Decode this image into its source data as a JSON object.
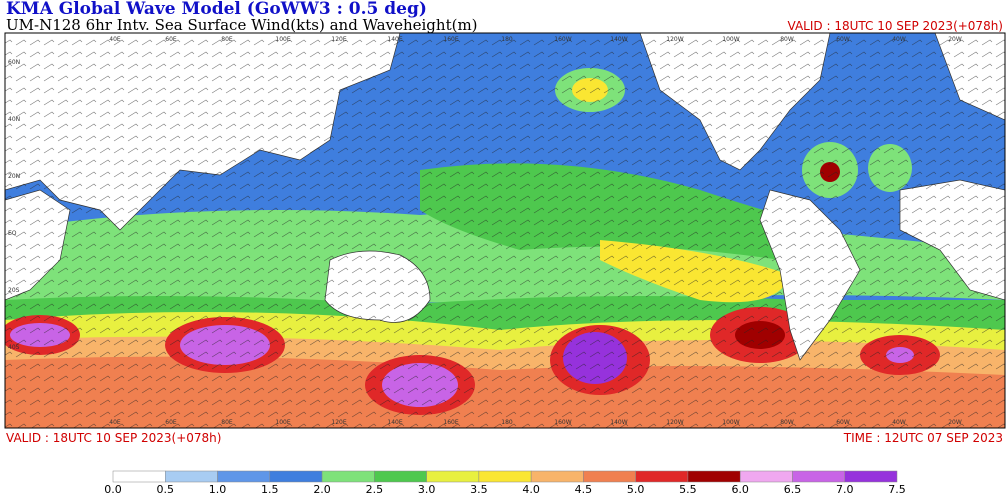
{
  "header": {
    "title": "KMA  Global Wave Model (GoWW3 : 0.5 deg)",
    "subtitle": "UM-N128  6hr Intv. Sea Surface Wind(kts) and Waveheight(m)",
    "valid": "VALID : 18UTC 10 SEP 2023(+078h)"
  },
  "footer": {
    "valid": "VALID : 18UTC 10 SEP 2023(+078h)",
    "time": "TIME : 12UTC 07 SEP 2023"
  },
  "map": {
    "longitude_labels": [
      "40E",
      "60E",
      "80E",
      "100E",
      "120E",
      "140E",
      "160E",
      "180",
      "160W",
      "140W",
      "120W",
      "100W",
      "80W",
      "60W",
      "40W",
      "20W"
    ],
    "latitude_labels": [
      "60N",
      "40N",
      "20N",
      "EQ",
      "20S",
      "40S"
    ]
  },
  "colorbar": {
    "ticks": [
      {
        "value": 0,
        "label": "0.0"
      },
      {
        "value": 0.5,
        "label": "0.5"
      },
      {
        "value": 1,
        "label": "1.0"
      },
      {
        "value": 1.5,
        "label": "1.5"
      },
      {
        "value": 2,
        "label": "2.0"
      },
      {
        "value": 2.5,
        "label": "2.5"
      },
      {
        "value": 3,
        "label": "3.0"
      },
      {
        "value": 3.5,
        "label": "3.5"
      },
      {
        "value": 4,
        "label": "4.0"
      },
      {
        "value": 4.5,
        "label": "4.5"
      },
      {
        "value": 5,
        "label": "5.0"
      },
      {
        "value": 5.5,
        "label": "5.5"
      },
      {
        "value": 6,
        "label": "6.0"
      },
      {
        "value": 6.5,
        "label": "6.5"
      },
      {
        "value": 7,
        "label": "7.0"
      },
      {
        "value": 7.5,
        "label": "7.5"
      }
    ],
    "colors": [
      "#ffffff",
      "#a8ccf2",
      "#5f96e8",
      "#3f7ede",
      "#7ee27a",
      "#4ec84e",
      "#e8f040",
      "#fae632",
      "#f8b46a",
      "#f08050",
      "#e02828",
      "#a00000",
      "#f0a8f0",
      "#c864e6",
      "#9632dc"
    ]
  }
}
